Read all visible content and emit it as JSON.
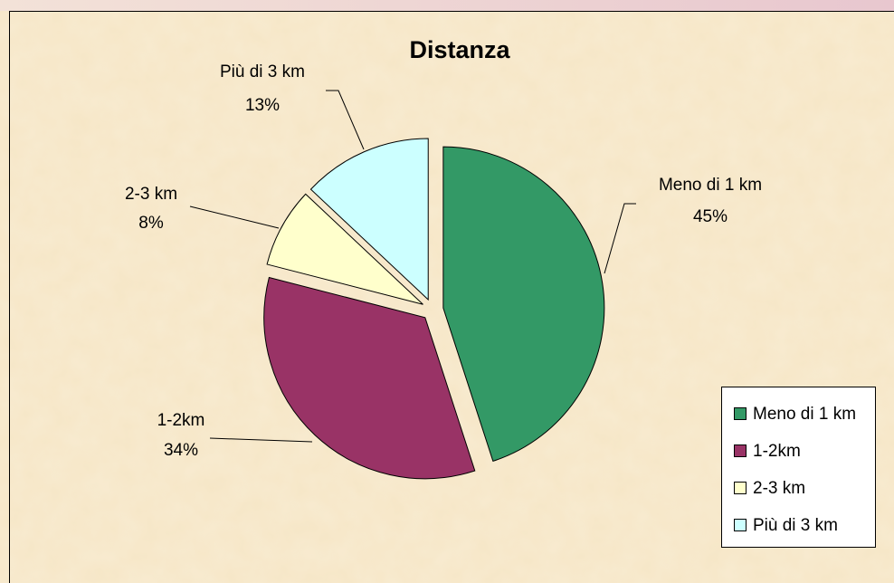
{
  "chart_data": {
    "type": "pie",
    "title": "Distanza",
    "categories": [
      "Meno di 1 km",
      "1-2km",
      "2-3 km",
      "Più di 3 km"
    ],
    "values": [
      45,
      34,
      8,
      13
    ],
    "value_labels": [
      "45%",
      "34%",
      "8%",
      "13%"
    ],
    "colors": [
      "#339966",
      "#993366",
      "#ffffcc",
      "#ccffff"
    ],
    "legend": "right"
  }
}
